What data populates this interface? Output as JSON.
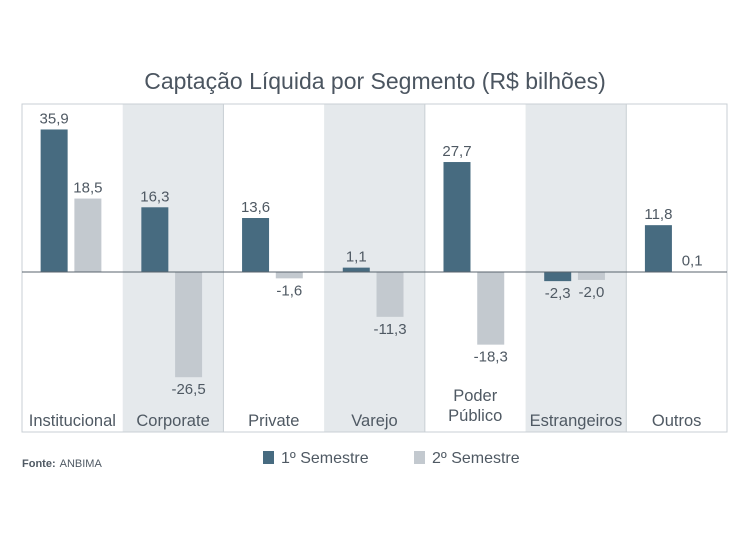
{
  "chart_data": {
    "type": "bar",
    "title": "Captação Líquida por Segmento (R$ bilhões)",
    "categories": [
      [
        "Institucional"
      ],
      [
        "Corporate"
      ],
      [
        "Private"
      ],
      [
        "Varejo"
      ],
      [
        "Poder",
        "Público"
      ],
      [
        "Estrangeiros"
      ],
      [
        "Outros"
      ]
    ],
    "series": [
      {
        "name": "1º Semestre",
        "values": [
          35.9,
          16.3,
          13.6,
          1.1,
          27.7,
          -2.3,
          11.8
        ],
        "labels": [
          "35,9",
          "16,3",
          "13,6",
          "1,1",
          "27,7",
          "-2,3",
          "11,8"
        ]
      },
      {
        "name": "2º Semestre",
        "values": [
          18.5,
          -26.5,
          -1.6,
          -11.3,
          -18.3,
          -2.0,
          0.1
        ],
        "labels": [
          "18,5",
          "-26,5",
          "-1,6",
          "-11,3",
          "-18,3",
          "-2,0",
          "0,1"
        ]
      }
    ],
    "ylim": [
      -35,
      40
    ],
    "grid": false,
    "legend_position": "bottom"
  },
  "colors": {
    "series1": "#476b80",
    "series2": "#c3c9cf",
    "band": "#e5e9ec",
    "frame": "#c9cfd4",
    "zero": "#58636c"
  },
  "source": {
    "label": "Fonte:",
    "text": "ANBIMA"
  }
}
